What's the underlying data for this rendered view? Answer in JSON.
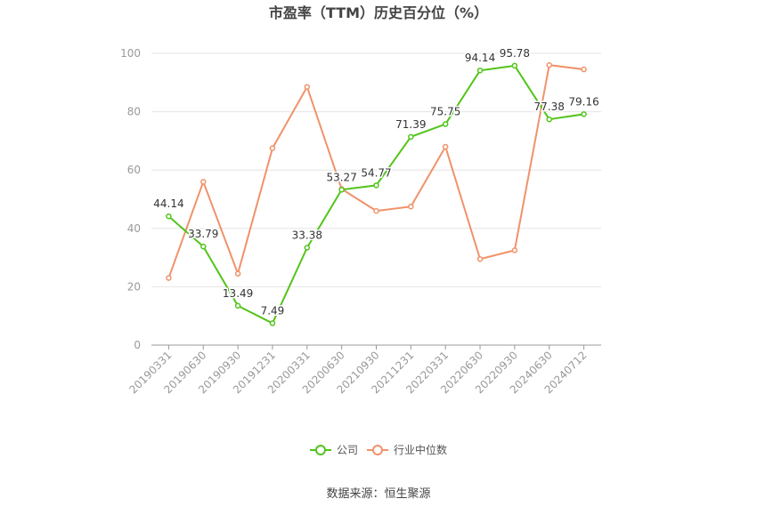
{
  "chart_data": {
    "type": "line",
    "title": "市盈率（TTM）历史百分位（%）",
    "source": "数据来源：恒生聚源",
    "categories": [
      "20190331",
      "20190630",
      "20190930",
      "20191231",
      "20200331",
      "20200630",
      "20210930",
      "20211231",
      "20220331",
      "20220630",
      "20220930",
      "20240630",
      "20240712"
    ],
    "y_ticks": [
      "0",
      "20",
      "40",
      "60",
      "80",
      "100"
    ],
    "ylim": [
      0,
      100
    ],
    "grid": true,
    "legend_position": "bottom-center",
    "series": [
      {
        "name": "公司",
        "color": "#52c41a",
        "values": [
          44.14,
          33.79,
          13.49,
          7.49,
          33.38,
          53.27,
          54.77,
          71.39,
          75.75,
          94.14,
          95.78,
          77.38,
          79.16
        ],
        "labels": [
          "44.14",
          "33.79",
          "13.49",
          "7.49",
          "33.38",
          "53.27",
          "54.77",
          "71.39",
          "75.75",
          "94.14",
          "95.78",
          "77.38",
          "79.16"
        ]
      },
      {
        "name": "行业中位数",
        "color": "#f0926a",
        "values": [
          23,
          56,
          24.5,
          67.5,
          88.5,
          53.5,
          46,
          47.5,
          68,
          29.5,
          32.5,
          96,
          94.5
        ]
      }
    ]
  }
}
